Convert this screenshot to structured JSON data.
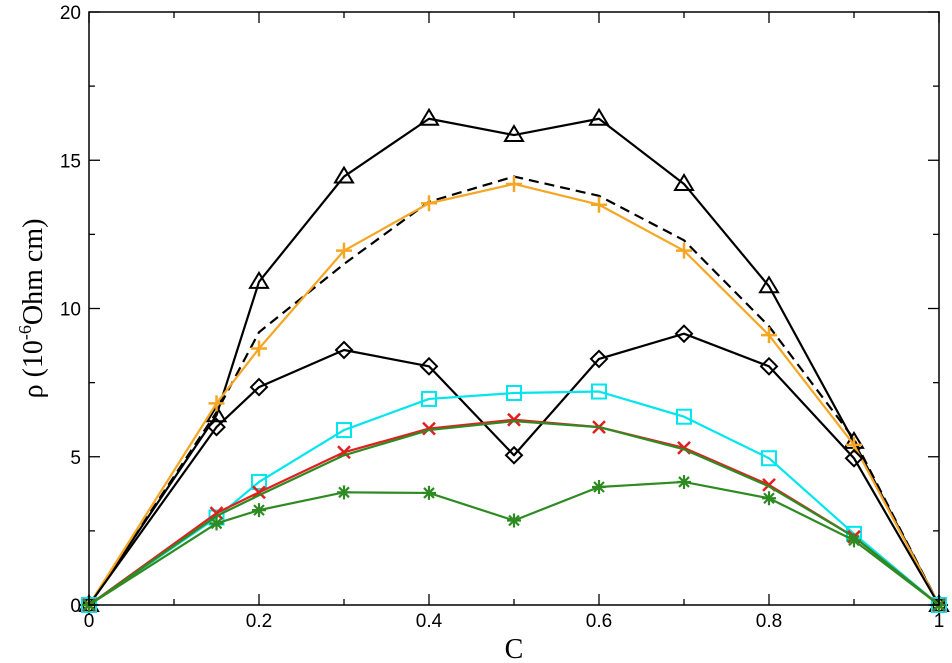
{
  "chart_data": {
    "type": "line",
    "xlabel": "C",
    "ylabel": {
      "base": "ρ (10",
      "exponent": "-6",
      "unit": "Ohm cm)"
    },
    "xlim": [
      0,
      1
    ],
    "ylim": [
      0,
      20
    ],
    "x_ticks": [
      0,
      0.2,
      0.4,
      0.6,
      0.8,
      1
    ],
    "x_tick_labels": [
      "0",
      "0.2",
      "0.4",
      "0.6",
      "0.8",
      "1"
    ],
    "y_ticks": [
      0,
      5,
      10,
      15,
      20
    ],
    "y_tick_labels": [
      "0",
      "5",
      "10",
      "15",
      "20"
    ],
    "grid": false,
    "series": [
      {
        "color": "#000000",
        "marker": "triangle",
        "dashed": false,
        "x": [
          0,
          0.15,
          0.2,
          0.3,
          0.4,
          0.5,
          0.6,
          0.7,
          0.8,
          0.9,
          1
        ],
        "y": [
          0,
          6.4,
          10.9,
          14.45,
          16.4,
          15.85,
          16.4,
          14.2,
          10.75,
          5.5,
          0
        ]
      },
      {
        "color": "#000000",
        "marker": "none",
        "dashed": true,
        "x": [
          0,
          0.15,
          0.2,
          0.3,
          0.4,
          0.5,
          0.6,
          0.7,
          0.8,
          0.9,
          1
        ],
        "y": [
          0,
          6.5,
          9.2,
          11.5,
          13.6,
          14.45,
          13.8,
          12.3,
          9.4,
          5.6,
          0
        ]
      },
      {
        "color": "#f5a623",
        "marker": "plus",
        "dashed": false,
        "x": [
          0,
          0.15,
          0.2,
          0.3,
          0.4,
          0.5,
          0.6,
          0.7,
          0.8,
          0.9,
          1
        ],
        "y": [
          0,
          6.8,
          8.65,
          11.95,
          13.55,
          14.2,
          13.5,
          11.95,
          9.1,
          5.4,
          0
        ]
      },
      {
        "color": "#000000",
        "marker": "diamond",
        "dashed": false,
        "x": [
          0,
          0.15,
          0.2,
          0.3,
          0.4,
          0.5,
          0.6,
          0.7,
          0.8,
          0.9,
          1
        ],
        "y": [
          0,
          6.0,
          7.35,
          8.6,
          8.05,
          5.05,
          8.3,
          9.15,
          8.05,
          4.95,
          0
        ]
      },
      {
        "color": "#00e5ee",
        "marker": "square",
        "dashed": false,
        "x": [
          0,
          0.15,
          0.2,
          0.3,
          0.4,
          0.5,
          0.6,
          0.7,
          0.8,
          0.9,
          1
        ],
        "y": [
          0,
          2.95,
          4.15,
          5.9,
          6.95,
          7.15,
          7.2,
          6.35,
          4.95,
          2.4,
          0
        ]
      },
      {
        "color": "#e02020",
        "marker": "x",
        "dashed": false,
        "x": [
          0,
          0.15,
          0.2,
          0.3,
          0.4,
          0.5,
          0.6,
          0.7,
          0.8,
          0.9,
          1
        ],
        "y": [
          0,
          3.1,
          3.8,
          5.15,
          5.95,
          6.25,
          6.0,
          5.3,
          4.05,
          2.3,
          0
        ]
      },
      {
        "color": "#2e8b22",
        "marker": "none",
        "dashed": false,
        "x": [
          0,
          0.15,
          0.2,
          0.3,
          0.4,
          0.5,
          0.6,
          0.7,
          0.8,
          0.9,
          1
        ],
        "y": [
          0,
          3.0,
          3.7,
          5.05,
          5.9,
          6.2,
          6.0,
          5.25,
          4.0,
          2.3,
          0
        ]
      },
      {
        "color": "#2e8b22",
        "marker": "asterisk",
        "dashed": false,
        "x": [
          0,
          0.15,
          0.2,
          0.3,
          0.4,
          0.5,
          0.6,
          0.7,
          0.8,
          0.9,
          1
        ],
        "y": [
          0,
          2.75,
          3.2,
          3.8,
          3.78,
          2.85,
          3.98,
          4.15,
          3.6,
          2.18,
          0
        ]
      }
    ]
  }
}
